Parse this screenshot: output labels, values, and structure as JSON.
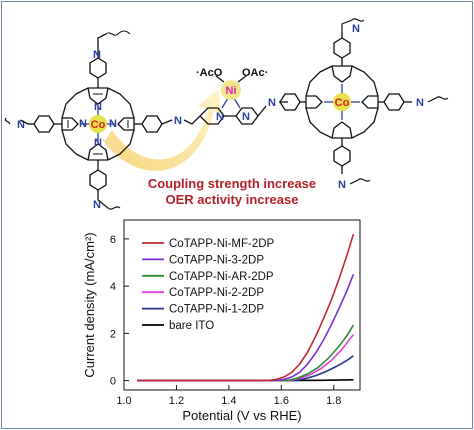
{
  "structure": {
    "cobalt_label": "Co",
    "nickel_label": "Ni",
    "acetate_left": "AcO",
    "acetate_right": "OAc",
    "imine_atom": "N",
    "pyrrole_atom": "N"
  },
  "caption": {
    "line1": "Coupling strength increase",
    "line2": "OER activity increase"
  },
  "chart_data": {
    "type": "line",
    "xlabel": "Potential (V vs RHE)",
    "ylabel": "Current density (mA/cm²)",
    "xlim": [
      1.0,
      1.9
    ],
    "ylim": [
      -0.4,
      6.8
    ],
    "xticks": [
      1.0,
      1.2,
      1.4,
      1.6,
      1.8
    ],
    "yticks": [
      0,
      2,
      4,
      6
    ],
    "legend_position": "top-left",
    "series": [
      {
        "name": "CoTAPP-Ni-MF-2DP",
        "color": "#c1272d",
        "x": [
          1.05,
          1.55,
          1.58,
          1.61,
          1.64,
          1.67,
          1.7,
          1.73,
          1.76,
          1.79,
          1.82,
          1.85,
          1.875
        ],
        "y": [
          0,
          0,
          0.05,
          0.15,
          0.35,
          0.7,
          1.2,
          1.85,
          2.6,
          3.4,
          4.3,
          5.3,
          6.2
        ]
      },
      {
        "name": "CoTAPP-Ni-3-2DP",
        "color": "#7b2fd6",
        "x": [
          1.05,
          1.58,
          1.61,
          1.64,
          1.67,
          1.7,
          1.73,
          1.76,
          1.79,
          1.82,
          1.85,
          1.875
        ],
        "y": [
          0,
          0,
          0.05,
          0.15,
          0.35,
          0.7,
          1.15,
          1.7,
          2.35,
          3.05,
          3.8,
          4.5
        ]
      },
      {
        "name": "CoTAPP-Ni-AR-2DP",
        "color": "#2e8b2e",
        "x": [
          1.05,
          1.62,
          1.66,
          1.7,
          1.74,
          1.78,
          1.82,
          1.85,
          1.875
        ],
        "y": [
          0,
          0,
          0.1,
          0.28,
          0.55,
          0.95,
          1.45,
          1.9,
          2.35
        ]
      },
      {
        "name": "CoTAPP-Ni-2-2DP",
        "color": "#e040d8",
        "x": [
          1.05,
          1.63,
          1.67,
          1.71,
          1.75,
          1.79,
          1.83,
          1.85,
          1.875
        ],
        "y": [
          0,
          0,
          0.1,
          0.25,
          0.5,
          0.85,
          1.3,
          1.6,
          1.95
        ]
      },
      {
        "name": "CoTAPP-Ni-1-2DP",
        "color": "#27358f",
        "x": [
          1.05,
          1.65,
          1.69,
          1.73,
          1.77,
          1.81,
          1.85,
          1.875
        ],
        "y": [
          0,
          0,
          0.08,
          0.2,
          0.38,
          0.6,
          0.85,
          1.05
        ]
      },
      {
        "name": "bare ITO",
        "color": "#000000",
        "x": [
          1.05,
          1.4,
          1.6,
          1.75,
          1.875
        ],
        "y": [
          0,
          0,
          0,
          0.01,
          0.03
        ]
      }
    ]
  }
}
